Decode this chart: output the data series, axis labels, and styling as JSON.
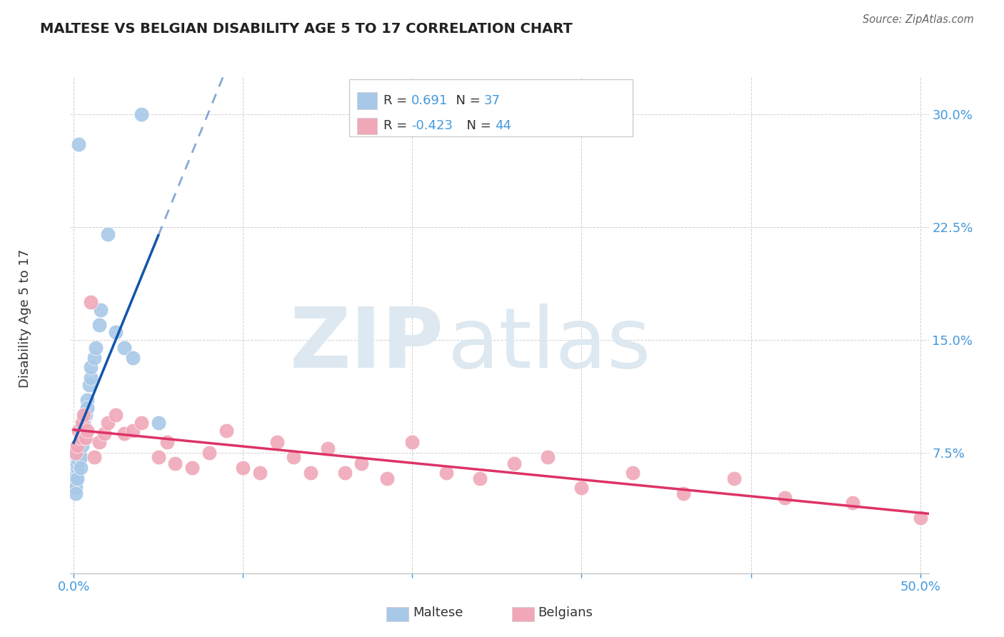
{
  "title": "MALTESE VS BELGIAN DISABILITY AGE 5 TO 17 CORRELATION CHART",
  "source": "Source: ZipAtlas.com",
  "ylabel": "Disability Age 5 to 17",
  "xlim": [
    -0.002,
    0.505
  ],
  "ylim": [
    -0.005,
    0.325
  ],
  "xtick_vals": [
    0.0,
    0.1,
    0.2,
    0.3,
    0.4,
    0.5
  ],
  "xtick_labels": [
    "0.0%",
    "",
    "",
    "",
    "",
    "50.0%"
  ],
  "ytick_vals": [
    0.075,
    0.15,
    0.225,
    0.3
  ],
  "ytick_labels": [
    "7.5%",
    "15.0%",
    "22.5%",
    "30.0%"
  ],
  "maltese_color": "#a8c8e8",
  "belgian_color": "#f0a8b8",
  "maltese_line_color": "#1155aa",
  "belgian_line_color": "#dd3366",
  "maltese_R": "0.691",
  "maltese_N": "37",
  "belgian_R": "-0.423",
  "belgian_N": "44",
  "accent_color": "#4499dd",
  "grid_color": "#cccccc",
  "bg_color": "#ffffff",
  "watermark_zip": "ZIP",
  "watermark_atlas": "atlas",
  "watermark_color": "#dde8f0",
  "maltese_x": [
    0.001,
    0.001,
    0.001,
    0.001,
    0.001,
    0.002,
    0.002,
    0.002,
    0.002,
    0.002,
    0.003,
    0.003,
    0.003,
    0.004,
    0.004,
    0.005,
    0.005,
    0.006,
    0.006,
    0.007,
    0.008,
    0.009,
    0.01,
    0.01,
    0.012,
    0.013,
    0.015,
    0.016,
    0.02,
    0.025,
    0.03,
    0.035,
    0.04,
    0.05,
    0.008,
    0.003,
    0.004
  ],
  "maltese_y": [
    0.055,
    0.06,
    0.058,
    0.052,
    0.048,
    0.065,
    0.07,
    0.072,
    0.068,
    0.058,
    0.075,
    0.08,
    0.07,
    0.085,
    0.072,
    0.088,
    0.08,
    0.095,
    0.085,
    0.1,
    0.11,
    0.12,
    0.125,
    0.132,
    0.138,
    0.145,
    0.16,
    0.17,
    0.22,
    0.155,
    0.145,
    0.138,
    0.3,
    0.095,
    0.105,
    0.28,
    0.065
  ],
  "belgian_x": [
    0.001,
    0.002,
    0.003,
    0.004,
    0.005,
    0.006,
    0.007,
    0.008,
    0.01,
    0.012,
    0.015,
    0.018,
    0.02,
    0.025,
    0.03,
    0.035,
    0.04,
    0.05,
    0.055,
    0.06,
    0.07,
    0.08,
    0.09,
    0.1,
    0.11,
    0.12,
    0.13,
    0.14,
    0.15,
    0.16,
    0.17,
    0.185,
    0.2,
    0.22,
    0.24,
    0.26,
    0.28,
    0.3,
    0.33,
    0.36,
    0.39,
    0.42,
    0.46,
    0.5
  ],
  "belgian_y": [
    0.075,
    0.08,
    0.09,
    0.085,
    0.095,
    0.1,
    0.085,
    0.09,
    0.175,
    0.072,
    0.082,
    0.088,
    0.095,
    0.1,
    0.088,
    0.09,
    0.095,
    0.072,
    0.082,
    0.068,
    0.065,
    0.075,
    0.09,
    0.065,
    0.062,
    0.082,
    0.072,
    0.062,
    0.078,
    0.062,
    0.068,
    0.058,
    0.082,
    0.062,
    0.058,
    0.068,
    0.072,
    0.052,
    0.062,
    0.048,
    0.058,
    0.045,
    0.042,
    0.032
  ]
}
